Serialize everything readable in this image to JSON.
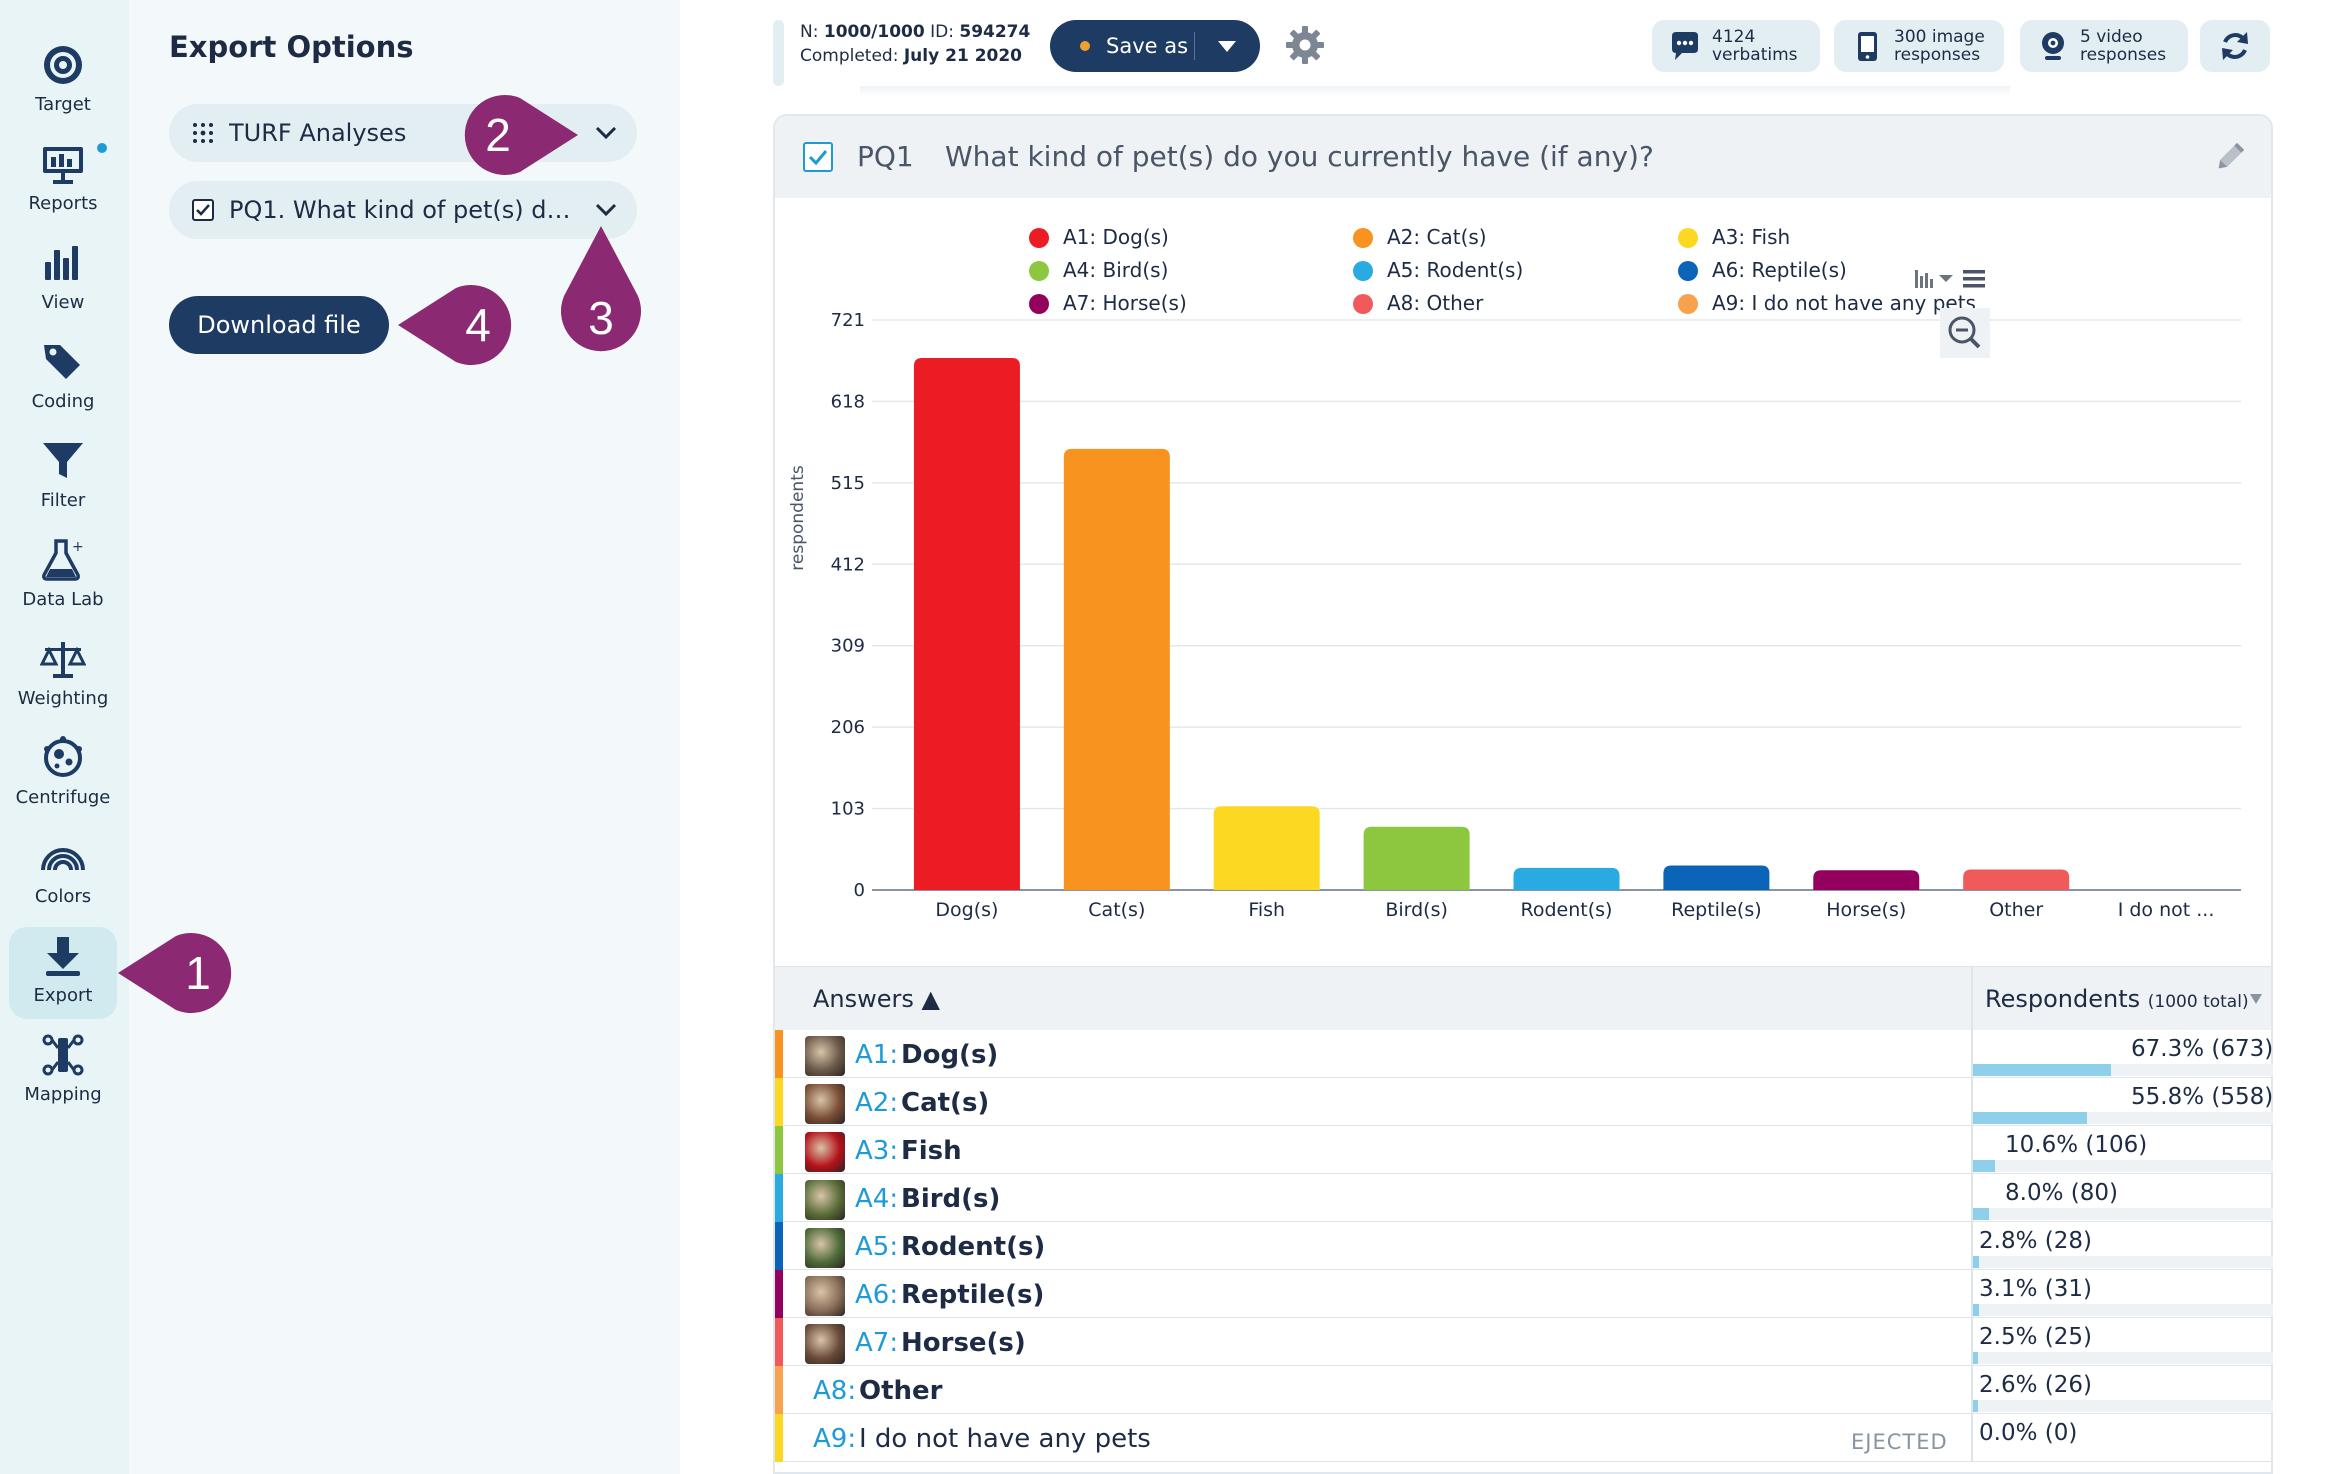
{
  "nav": {
    "items": [
      {
        "label": "Target",
        "icon": "target-icon"
      },
      {
        "label": "Reports",
        "icon": "reports-icon"
      },
      {
        "label": "View",
        "icon": "view-icon"
      },
      {
        "label": "Coding",
        "icon": "coding-icon"
      },
      {
        "label": "Filter",
        "icon": "filter-icon"
      },
      {
        "label": "Data Lab",
        "icon": "data-lab-icon"
      },
      {
        "label": "Weighting",
        "icon": "weighting-icon"
      },
      {
        "label": "Centrifuge",
        "icon": "centrifuge-icon"
      },
      {
        "label": "Colors",
        "icon": "colors-icon"
      },
      {
        "label": "Export",
        "icon": "export-icon"
      },
      {
        "label": "Mapping",
        "icon": "mapping-icon"
      }
    ],
    "active": "Export"
  },
  "export_panel": {
    "title": "Export Options",
    "format_select": "TURF Analyses",
    "question_select": "PQ1. What kind of pet(s) do…",
    "download_label": "Download file"
  },
  "callouts": [
    "1",
    "2",
    "3",
    "4"
  ],
  "header": {
    "n_label": "N:",
    "n_value": "1000/1000",
    "id_label": "ID:",
    "id_value": "594274",
    "completed_label": "Completed:",
    "completed_value": "July 21 2020",
    "save_as": "Save as",
    "stats": [
      {
        "line1": "4124",
        "line2": "verbatims",
        "icon": "speech-bubble-icon"
      },
      {
        "line1": "300 image",
        "line2": "responses",
        "icon": "phone-image-icon"
      },
      {
        "line1": "5 video",
        "line2": "responses",
        "icon": "webcam-icon"
      }
    ]
  },
  "question": {
    "code": "PQ1",
    "text": "What kind of pet(s) do you currently have (if any)?"
  },
  "chart_data": {
    "type": "bar",
    "ylabel": "respondents",
    "ylim": [
      0,
      721
    ],
    "yticks": [
      "0",
      "103",
      "206",
      "309",
      "412",
      "515",
      "618",
      "721"
    ],
    "categories": [
      "Dog(s)",
      "Cat(s)",
      "Fish",
      "Bird(s)",
      "Rodent(s)",
      "Reptile(s)",
      "Horse(s)",
      "Other",
      "I do not ..."
    ],
    "values": [
      673,
      558,
      106,
      80,
      28,
      31,
      25,
      26,
      0
    ],
    "colors": [
      "#ec1c24",
      "#f7931e",
      "#fcd823",
      "#8dc63f",
      "#29abe2",
      "#0b64b8",
      "#93005e",
      "#f05a5b",
      "#f7a24c"
    ],
    "legend": [
      "A1: Dog(s)",
      "A2: Cat(s)",
      "A3: Fish",
      "A4: Bird(s)",
      "A5: Rodent(s)",
      "A6: Reptile(s)",
      "A7: Horse(s)",
      "A8: Other",
      "A9: I do not have any pets"
    ],
    "legend_placement": "top",
    "grid": true
  },
  "table": {
    "col_answers": "Answers ▲",
    "col_respondents": "Respondents",
    "col_respondents_total": "(1000 total)",
    "rows": [
      {
        "code": "A1:",
        "label": "Dog(s)",
        "value": "67.3% (673)",
        "pct": 67.3,
        "strip": "#f7931e",
        "thumb": true,
        "thumb_color": "#6b5a4a"
      },
      {
        "code": "A2:",
        "label": "Cat(s)",
        "value": "55.8% (558)",
        "pct": 55.8,
        "strip": "#fcd823",
        "thumb": true,
        "thumb_color": "#7a4e35"
      },
      {
        "code": "A3:",
        "label": "Fish",
        "value": "10.6% (106)",
        "pct": 10.6,
        "strip": "#8dc63f",
        "thumb": true,
        "thumb_color": "#b5121b"
      },
      {
        "code": "A4:",
        "label": "Bird(s)",
        "value": "8.0% (80)",
        "pct": 8.0,
        "strip": "#29abe2",
        "thumb": true,
        "thumb_color": "#5a6e3a"
      },
      {
        "code": "A5:",
        "label": "Rodent(s)",
        "value": "2.8% (28)",
        "pct": 2.8,
        "strip": "#0b64b8",
        "thumb": true,
        "thumb_color": "#4e6b3a"
      },
      {
        "code": "A6:",
        "label": "Reptile(s)",
        "value": "3.1% (31)",
        "pct": 3.1,
        "strip": "#93005e",
        "thumb": true,
        "thumb_color": "#8a6f5a"
      },
      {
        "code": "A7:",
        "label": "Horse(s)",
        "value": "2.5% (25)",
        "pct": 2.5,
        "strip": "#f05a5b",
        "thumb": true,
        "thumb_color": "#6a4b3a"
      },
      {
        "code": "A8:",
        "label": "Other",
        "value": "2.6% (26)",
        "pct": 2.6,
        "strip": "#f7a24c",
        "thumb": false
      },
      {
        "code": "A9:",
        "label": "I do not have any pets",
        "value": "0.0% (0)",
        "pct": 0,
        "strip": "#fcd823",
        "thumb": false,
        "ejected": "EJECTED"
      }
    ]
  },
  "colors": {
    "accent": "#1e9bd7",
    "navy": "#1d3b63",
    "callout": "#8b2a73",
    "sidebar_bg": "#e8f4f5"
  }
}
